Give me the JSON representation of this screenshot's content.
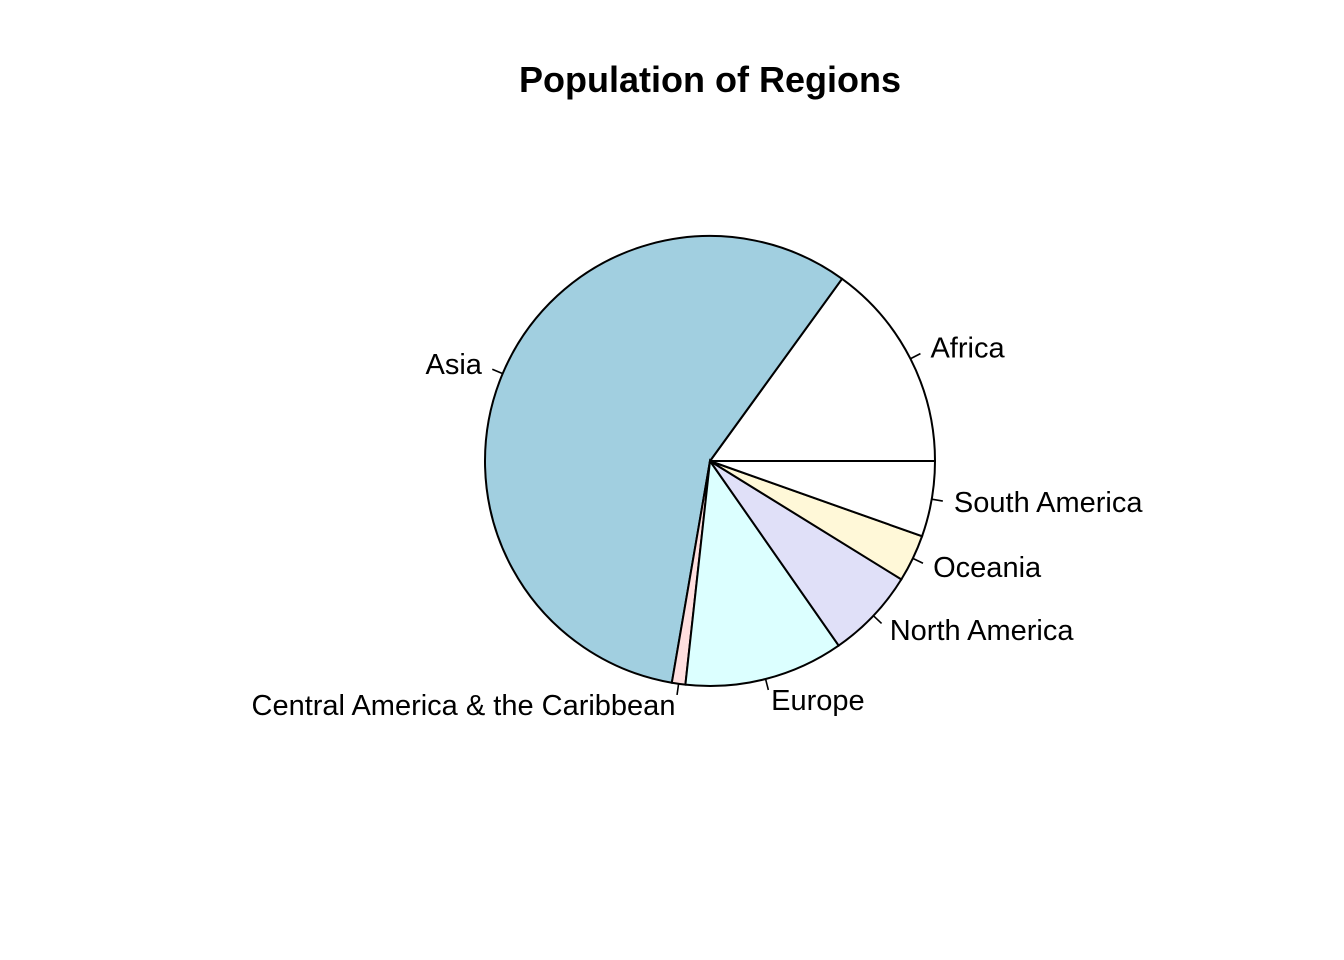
{
  "chart_data": {
    "type": "pie",
    "title": "Population of Regions",
    "start_angle_deg": 0,
    "direction": "counterclockwise",
    "slices": [
      {
        "label": "Africa",
        "value": 15.5,
        "color": "#ffffff"
      },
      {
        "label": "Asia",
        "value": 59.1,
        "color": "#a1cfe0"
      },
      {
        "label": "Central America & the Caribbean",
        "value": 1.0,
        "color": "#ffdfdf"
      },
      {
        "label": "Europe",
        "value": 11.8,
        "color": "#dcffff"
      },
      {
        "label": "North America",
        "value": 6.7,
        "color": "#e0e0f8"
      },
      {
        "label": "Oceania",
        "value": 3.5,
        "color": "#fff8d8"
      },
      {
        "label": "South America",
        "value": 5.6,
        "color": "#ffffff"
      }
    ]
  }
}
